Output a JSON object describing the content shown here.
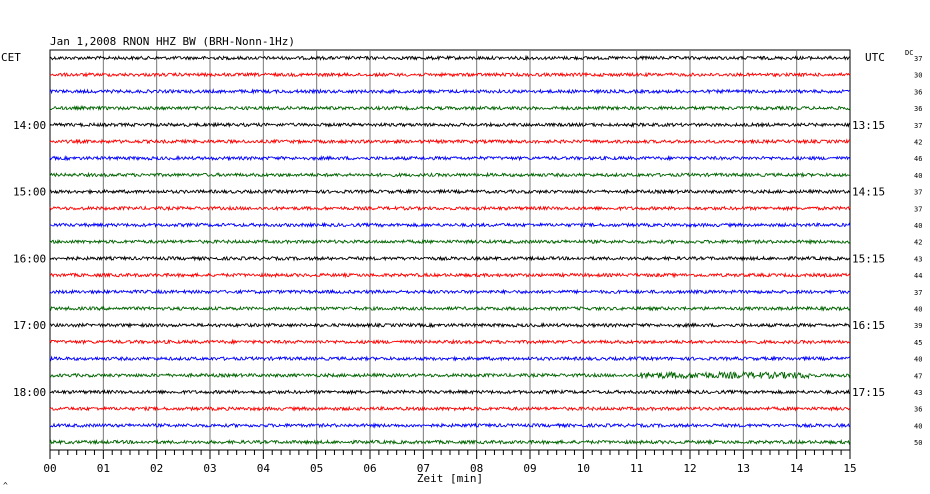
{
  "chart_data": {
    "type": "line",
    "title": "Jan 1,2008   RNON HHZ BW (BRH-Nonn-1Hz)",
    "left_timezone": "CET",
    "right_timezone": "UTC",
    "dc_label": "DC",
    "xlabel": "Zeit [min]",
    "xlim": [
      0,
      15
    ],
    "x_ticks": [
      "00",
      "01",
      "02",
      "03",
      "04",
      "05",
      "06",
      "07",
      "08",
      "09",
      "10",
      "11",
      "12",
      "13",
      "14",
      "15"
    ],
    "left_hour_labels": [
      "14:00",
      "15:00",
      "16:00",
      "17:00",
      "18:00"
    ],
    "right_hour_labels": [
      "13:15",
      "14:15",
      "15:15",
      "16:15",
      "17:15"
    ],
    "trace_colors": [
      "#000000",
      "#ff0000",
      "#0000ff",
      "#006400"
    ],
    "dc_offsets": [
      37,
      30,
      36,
      36,
      37,
      42,
      46,
      40,
      37,
      37,
      40,
      42,
      43,
      44,
      37,
      40,
      39,
      45,
      40,
      47,
      43,
      36,
      40,
      50
    ],
    "footer_mark": "^",
    "grid": true
  }
}
